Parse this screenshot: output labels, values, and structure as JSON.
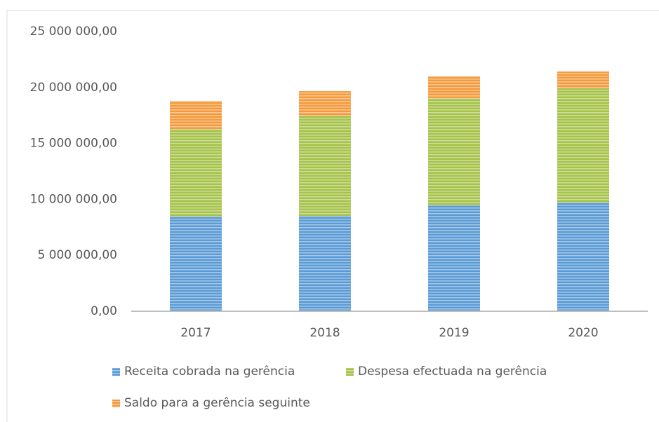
{
  "chart_data": {
    "type": "stacked_bar",
    "categories": [
      "2017",
      "2018",
      "2019",
      "2020"
    ],
    "series": [
      {
        "name": "Receita cobrada na gerência",
        "color": "#5b9bd5",
        "values": [
          8460000,
          8520000,
          9460000,
          9710000
        ]
      },
      {
        "name": "Despesa efectuada na gerência",
        "color": "#a5c249",
        "values": [
          7830000,
          8960000,
          9590000,
          10210000
        ]
      },
      {
        "name": "Saldo para a gerência seguinte",
        "color": "#f59a3c",
        "values": [
          2500000,
          2190000,
          1940000,
          1510000
        ]
      }
    ],
    "ylim": [
      0,
      25000000
    ],
    "yticks": [
      {
        "value": 0,
        "label": "0,00"
      },
      {
        "value": 5000000,
        "label": "5 000 000,00"
      },
      {
        "value": 10000000,
        "label": "10 000 000,00"
      },
      {
        "value": 15000000,
        "label": "15 000 000,00"
      },
      {
        "value": 20000000,
        "label": "20 000 000,00"
      },
      {
        "value": 25000000,
        "label": "25 000 000,00"
      }
    ],
    "grid": false,
    "legend": "bottom"
  }
}
